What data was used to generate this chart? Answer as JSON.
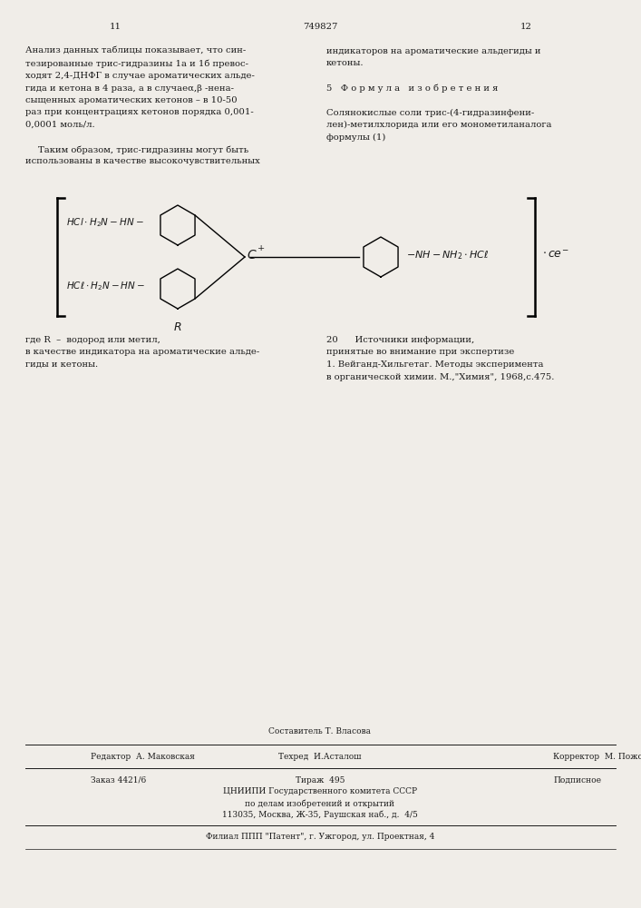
{
  "bg_color": "#f0ede8",
  "text_color": "#1a1a1a",
  "page_num_left": "11",
  "page_num_center": "749827",
  "page_num_right": "12",
  "left_col_lines": [
    "Анализ данных таблицы показывает, что син-",
    "тезированные трис-гидразины 1а и 1б превос-",
    "ходят 2,4-ДНФГ в случае ароматических альде-",
    "гида и кетона в 4 раза, а в случаеα,β -нена-",
    "сыщенных ароматических кетонов – в 10-50",
    "раз при концентрациях кетонов порядка 0,001-",
    "0,0001 моль/л.",
    "",
    "Таким образом, трис-гидразины могут быть",
    "использованы в качестве высокочувствительных"
  ],
  "right_col_lines": [
    "индикаторов на ароматические альдегиды и",
    "кетоны.",
    "",
    "5   Ф о р м у л а   и з о б р е т е н и я",
    "",
    "Солянокислые соли трис-(4-гидразинфени-",
    "лен)-метилхлорида или его монометиланалога",
    "формулы (1)"
  ],
  "bottom_left_lines": [
    "где R  –  водород или метил,",
    "в качестве индикатора на ароматические альде-",
    "гиды и кетоны."
  ],
  "bottom_right_lines": [
    "20      Источники информации,",
    "принятые во внимание при экспертизе",
    "1. Вейганд-Хильгетаг. Методы эксперимента",
    "в органической химии. М.,\"Химия\", 1968,с.475."
  ],
  "footer_sestavitel": "Составитель Т. Власова",
  "footer_redaktor": "Редактор  А. Маковская",
  "footer_tehred": "Техред  И.Асталош",
  "footer_korrektor": "Корректор  М. Пожо",
  "footer_order": "Заказ 4421/6",
  "footer_tirazh": "Тираж  495",
  "footer_podpisnoe": "Подписное",
  "footer_org1": "ЦНИИПИ Государственного комитета СССР",
  "footer_org2": "по делам изобретений и открытий",
  "footer_org3": "113035, Москва, Ж-35, Раушская наб., д.  4/5",
  "footer_filial": "Филиал ППП \"Патент\", г. Ужгород, ул. Проектная, 4"
}
